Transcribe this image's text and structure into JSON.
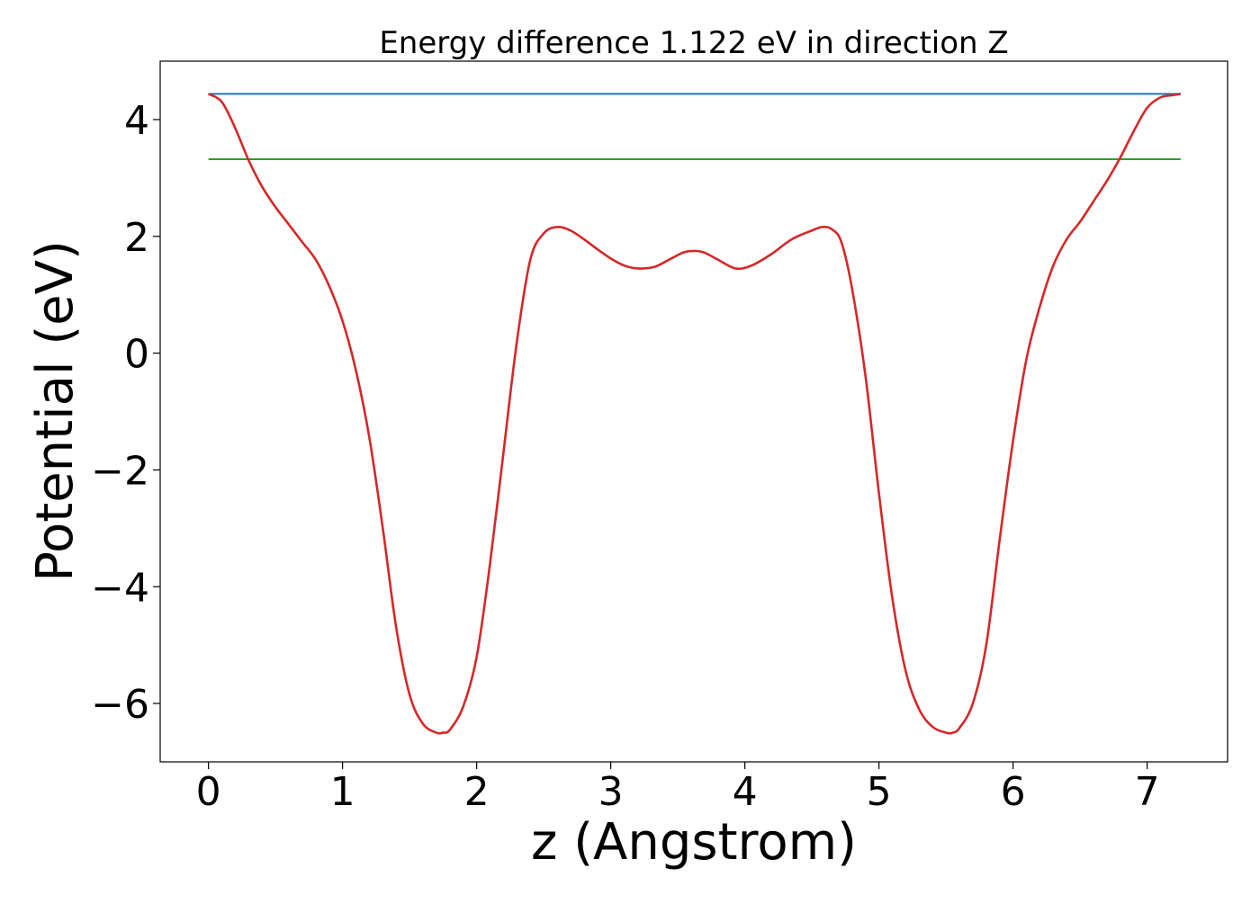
{
  "chart_data": {
    "type": "line",
    "title": "Energy difference 1.122 eV in direction Z",
    "xlabel": "z (Angstrom)",
    "ylabel": "Potential (eV)",
    "xlim": [
      -0.36,
      7.6
    ],
    "ylim": [
      -7.0,
      5.0
    ],
    "x_ticks": [
      0,
      1,
      2,
      3,
      4,
      5,
      6,
      7
    ],
    "x_tick_labels": [
      "0",
      "1",
      "2",
      "3",
      "4",
      "5",
      "6",
      "7"
    ],
    "y_ticks": [
      -6,
      -4,
      -2,
      0,
      2,
      4
    ],
    "y_tick_labels": [
      "−6",
      "−4",
      "−2",
      "0",
      "2",
      "4"
    ],
    "grid": false,
    "series": [
      {
        "color": "#1f77b4",
        "style": "hline",
        "x": [
          0,
          7.25
        ],
        "y": [
          4.44,
          4.44
        ]
      },
      {
        "color": "#2ca02c",
        "style": "hline",
        "x": [
          0,
          7.25
        ],
        "y": [
          3.32,
          3.32
        ]
      },
      {
        "color": "#d62728",
        "style": "curve",
        "x": [
          0,
          0.1,
          0.2,
          0.3,
          0.4,
          0.5,
          0.6,
          0.7,
          0.8,
          0.9,
          1.0,
          1.1,
          1.2,
          1.3,
          1.4,
          1.5,
          1.6,
          1.7,
          1.75,
          1.8,
          1.9,
          2.0,
          2.1,
          2.2,
          2.3,
          2.4,
          2.5,
          2.6,
          2.7,
          2.8,
          2.9,
          3.0,
          3.1,
          3.2,
          3.33,
          3.45,
          3.55,
          3.63,
          3.7,
          3.8,
          3.93,
          4.05,
          4.2,
          4.35,
          4.5,
          4.58,
          4.65,
          4.72,
          4.8,
          4.9,
          5.0,
          5.1,
          5.2,
          5.3,
          5.4,
          5.5,
          5.55,
          5.6,
          5.7,
          5.8,
          5.9,
          6.0,
          6.1,
          6.2,
          6.3,
          6.4,
          6.5,
          6.6,
          6.7,
          6.8,
          6.9,
          7.0,
          7.1,
          7.2,
          7.25
        ],
        "y": [
          4.44,
          4.3,
          3.85,
          3.3,
          2.85,
          2.5,
          2.2,
          1.9,
          1.6,
          1.15,
          0.55,
          -0.3,
          -1.45,
          -3.0,
          -4.7,
          -5.85,
          -6.35,
          -6.5,
          -6.5,
          -6.45,
          -6.05,
          -5.2,
          -3.6,
          -1.7,
          0.2,
          1.6,
          2.05,
          2.16,
          2.1,
          1.95,
          1.78,
          1.62,
          1.5,
          1.45,
          1.48,
          1.62,
          1.73,
          1.75,
          1.72,
          1.6,
          1.45,
          1.5,
          1.7,
          1.95,
          2.1,
          2.16,
          2.12,
          1.9,
          1.1,
          -0.4,
          -2.4,
          -4.2,
          -5.45,
          -6.1,
          -6.4,
          -6.5,
          -6.5,
          -6.42,
          -6.0,
          -5.0,
          -3.2,
          -1.5,
          -0.1,
          0.8,
          1.5,
          1.95,
          2.25,
          2.6,
          2.95,
          3.35,
          3.8,
          4.2,
          4.38,
          4.42,
          4.44
        ]
      }
    ]
  }
}
